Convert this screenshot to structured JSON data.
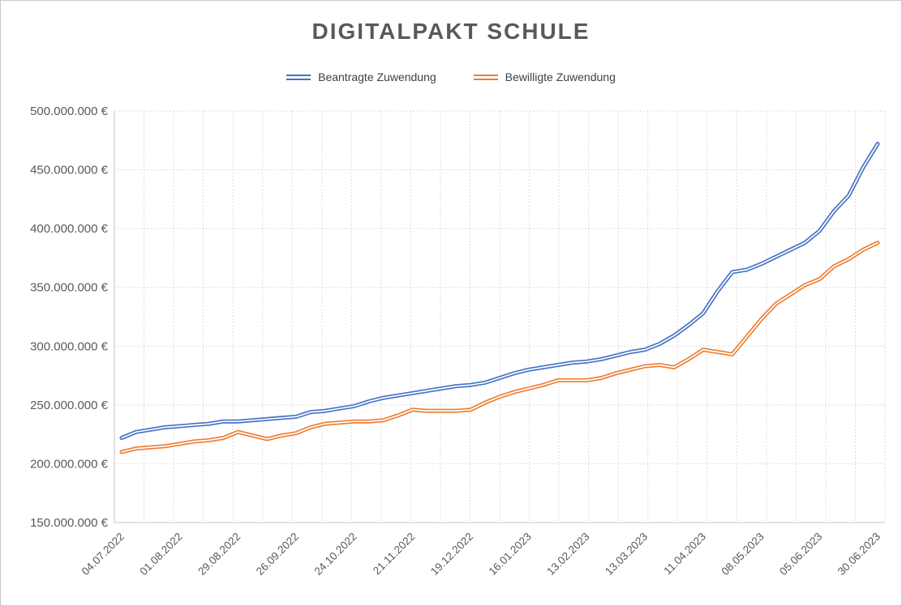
{
  "chart": {
    "title": "DIGITALPAKT SCHULE",
    "background_color": "#ffffff",
    "border_color": "#c9c9c9",
    "title_color": "#595959",
    "axis_label_color": "#595959",
    "gridline_color": "#dddddd",
    "axis_line_color": "#c6c6c6"
  },
  "chart_data": {
    "type": "line",
    "title": "DIGITALPAKT SCHULE",
    "unit": "EUR",
    "values_scale_note": "values are in millions of EUR as read from the y-axis",
    "grid": true,
    "legend_position": "top",
    "line_style": "double",
    "y_axis": {
      "min_millions": 150,
      "max_millions": 500,
      "tick_step_millions": 50,
      "tick_labels_top_to_bottom": [
        "500.000.000 €",
        "450.000.000 €",
        "400.000.000 €",
        "350.000.000 €",
        "300.000.000 €",
        "250.000.000 €",
        "200.000.000 €",
        "150.000.000 €"
      ]
    },
    "x_axis": {
      "points_total": 53,
      "label_every_n_points": 4,
      "rotation_deg": 45,
      "tick_labels": [
        "04.07.2022",
        "01.08.2022",
        "29.08.2022",
        "26.09.2022",
        "24.10.2022",
        "21.11.2022",
        "19.12.2022",
        "16.01.2023",
        "13.02.2023",
        "13.03.2023",
        "11.04.2023",
        "08.05.2023",
        "05.06.2023",
        "30.06.2023"
      ]
    },
    "series": [
      {
        "name": "Beantragte Zuwendung",
        "color": "#4472C4",
        "values_millions": [
          222,
          227,
          229,
          231,
          232,
          233,
          234,
          236,
          236,
          237,
          238,
          239,
          240,
          244,
          245,
          247,
          249,
          253,
          256,
          258,
          260,
          262,
          264,
          266,
          267,
          269,
          273,
          277,
          280,
          282,
          284,
          286,
          287,
          289,
          292,
          295,
          297,
          302,
          309,
          318,
          328,
          347,
          363,
          365,
          370,
          376,
          382,
          388,
          398,
          415,
          428,
          452,
          472
        ]
      },
      {
        "name": "Bewilligte Zuwendung",
        "color": "#ED7D31",
        "values_millions": [
          210,
          213,
          214,
          215,
          217,
          219,
          220,
          222,
          227,
          224,
          221,
          224,
          226,
          231,
          234,
          235,
          236,
          236,
          237,
          241,
          246,
          245,
          245,
          245,
          246,
          252,
          257,
          261,
          264,
          267,
          271,
          271,
          271,
          273,
          277,
          280,
          283,
          284,
          282,
          289,
          297,
          295,
          293,
          308,
          323,
          336,
          344,
          352,
          357,
          368,
          374,
          382,
          388
        ]
      }
    ]
  }
}
